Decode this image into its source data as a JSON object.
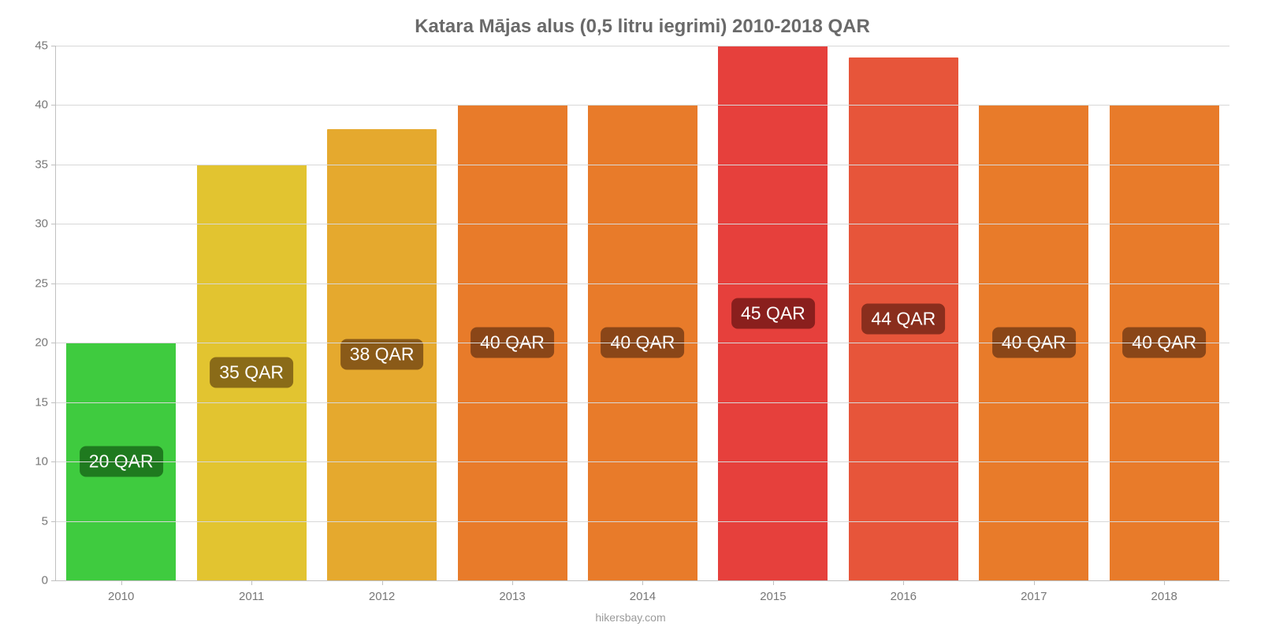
{
  "chart": {
    "type": "bar",
    "title": "Katara Mājas alus (0,5 litru iegrimi) 2010-2018 QAR",
    "title_fontsize": 24,
    "title_color": "#6a6a6a",
    "background_color": "#ffffff",
    "grid_color": "#d8d8d8",
    "axis_color": "#c0c0c0",
    "tick_label_color": "#777777",
    "tick_label_fontsize": 15,
    "value_label_fontsize": 23,
    "value_label_text_color": "#ffffff",
    "attribution": "hikersbay.com",
    "attribution_color": "#9a9a9a",
    "ylim": [
      0,
      45
    ],
    "ytick_step": 5,
    "yticks": [
      0,
      5,
      10,
      15,
      20,
      25,
      30,
      35,
      40,
      45
    ],
    "bar_width_ratio": 0.84,
    "categories": [
      "2010",
      "2011",
      "2012",
      "2013",
      "2014",
      "2015",
      "2016",
      "2017",
      "2018"
    ],
    "values": [
      20,
      35,
      38,
      40,
      40,
      45,
      44,
      40,
      40
    ],
    "value_labels": [
      "20 QAR",
      "35 QAR",
      "38 QAR",
      "40 QAR",
      "40 QAR",
      "45 QAR",
      "44 QAR",
      "40 QAR",
      "40 QAR"
    ],
    "bar_colors": [
      "#3fcb3f",
      "#e2c430",
      "#e5a92e",
      "#e87b2a",
      "#e87b2a",
      "#e6403c",
      "#e7553a",
      "#e87b2a",
      "#e87b2a"
    ],
    "value_label_bg_colors": [
      "#1f7a1f",
      "#8a6b18",
      "#8a5a18",
      "#8a4618",
      "#8a4618",
      "#8a1f1d",
      "#8a2e1d",
      "#8a4618",
      "#8a4618"
    ]
  }
}
